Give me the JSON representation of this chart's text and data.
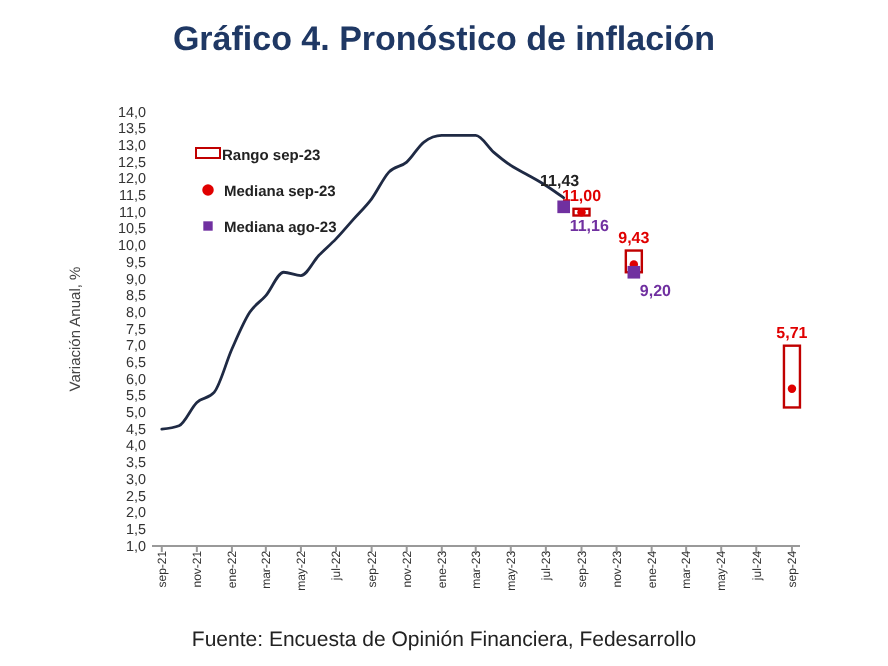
{
  "chart_data": {
    "type": "line",
    "title": "Gráfico 4. Pronóstico de inflación",
    "ylabel": "Variación Anual, %",
    "annotations": [
      "Fuente: Encuesta de Opinión Financiera, Fedesarrollo"
    ],
    "xlim": [
      "2021-08-15",
      "2024-09-15"
    ],
    "xticks": [
      {
        "value": "2021-09-01",
        "label": "sep-21"
      },
      {
        "value": "2021-11-01",
        "label": "nov-21"
      },
      {
        "value": "2022-01-01",
        "label": "ene-22"
      },
      {
        "value": "2022-03-01",
        "label": "mar-22"
      },
      {
        "value": "2022-05-01",
        "label": "may-22"
      },
      {
        "value": "2022-07-01",
        "label": "jul-22"
      },
      {
        "value": "2022-09-01",
        "label": "sep-22"
      },
      {
        "value": "2022-11-01",
        "label": "nov-22"
      },
      {
        "value": "2023-01-01",
        "label": "ene-23"
      },
      {
        "value": "2023-03-01",
        "label": "mar-23"
      },
      {
        "value": "2023-05-01",
        "label": "may-23"
      },
      {
        "value": "2023-07-01",
        "label": "jul-23"
      },
      {
        "value": "2023-09-01",
        "label": "sep-23"
      },
      {
        "value": "2023-11-01",
        "label": "nov-23"
      },
      {
        "value": "2024-01-01",
        "label": "ene-24"
      },
      {
        "value": "2024-03-01",
        "label": "mar-24"
      },
      {
        "value": "2024-05-01",
        "label": "may-24"
      },
      {
        "value": "2024-07-01",
        "label": "jul-24"
      },
      {
        "value": "2024-09-01",
        "label": "sep-24"
      }
    ],
    "ylim": [
      1,
      14
    ],
    "yticks": [
      {
        "value": 1,
        "label": "1,0"
      },
      {
        "value": 1.5,
        "label": "1,5"
      },
      {
        "value": 2,
        "label": "2,0"
      },
      {
        "value": 2.5,
        "label": "2,5"
      },
      {
        "value": 3,
        "label": "3,0"
      },
      {
        "value": 3.5,
        "label": "3,5"
      },
      {
        "value": 4,
        "label": "4,0"
      },
      {
        "value": 4.5,
        "label": "4,5"
      },
      {
        "value": 5,
        "label": "5,0"
      },
      {
        "value": 5.5,
        "label": "5,5"
      },
      {
        "value": 6,
        "label": "6,0"
      },
      {
        "value": 6.5,
        "label": "6,5"
      },
      {
        "value": 7,
        "label": "7,0"
      },
      {
        "value": 7.5,
        "label": "7,5"
      },
      {
        "value": 8,
        "label": "8,0"
      },
      {
        "value": 8.5,
        "label": "8,5"
      },
      {
        "value": 9,
        "label": "9,0"
      },
      {
        "value": 9.5,
        "label": "9,5"
      },
      {
        "value": 10,
        "label": "10,0"
      },
      {
        "value": 10.5,
        "label": "10,5"
      },
      {
        "value": 11,
        "label": "11,0"
      },
      {
        "value": 11.5,
        "label": "11,5"
      },
      {
        "value": 12,
        "label": "12,0"
      },
      {
        "value": 12.5,
        "label": "12,5"
      },
      {
        "value": 13,
        "label": "13,0"
      },
      {
        "value": 13.5,
        "label": "13,5"
      },
      {
        "value": 14,
        "label": "14,0"
      }
    ],
    "legend": "top left",
    "grid": false,
    "series": [
      {
        "color": "#1f2a44",
        "marker": "none",
        "x": [
          "2021-09-01",
          "2021-10-01",
          "2021-11-01",
          "2021-12-01",
          "2022-01-01",
          "2022-02-01",
          "2022-03-01",
          "2022-04-01",
          "2022-05-01",
          "2022-06-01",
          "2022-07-01",
          "2022-08-01",
          "2022-09-01",
          "2022-10-01",
          "2022-11-01",
          "2022-12-01",
          "2023-01-01",
          "2023-02-01",
          "2023-03-01",
          "2023-04-01",
          "2023-05-01",
          "2023-06-01",
          "2023-07-01",
          "2023-08-01"
        ],
        "values": [
          4.5,
          4.6,
          5.3,
          5.6,
          6.9,
          8.0,
          8.5,
          9.2,
          9.1,
          9.7,
          10.2,
          10.8,
          11.4,
          12.2,
          12.5,
          13.1,
          13.3,
          13.3,
          13.3,
          12.8,
          12.4,
          12.1,
          11.8,
          11.43
        ],
        "value_labels": [
          null,
          null,
          null,
          null,
          null,
          null,
          null,
          null,
          null,
          null,
          null,
          null,
          null,
          null,
          null,
          null,
          null,
          null,
          null,
          null,
          null,
          null,
          null,
          "11,43"
        ]
      },
      {
        "type": "bar",
        "name": "Rango sep-23",
        "color": "#c00000",
        "x": [
          "2023-09-01",
          "2023-12-01",
          "2024-09-01"
        ],
        "base": [
          10.9,
          9.2,
          5.15
        ],
        "values": [
          0.2,
          0.65,
          1.85
        ]
      },
      {
        "type": "scatter",
        "name": "Mediana sep-23",
        "color": "#e00000",
        "marker": "circle",
        "x": [
          "2023-09-01",
          "2023-12-01",
          "2024-09-01"
        ],
        "values": [
          11.0,
          9.43,
          5.71
        ],
        "value_labels": [
          "11,00",
          "9,43",
          "5,71"
        ]
      },
      {
        "type": "scatter",
        "name": "Mediana ago-23",
        "color": "#7030a0",
        "marker": "square",
        "x": [
          "2023-08-01",
          "2023-12-01"
        ],
        "values": [
          11.16,
          9.2
        ],
        "value_labels": [
          "11,16",
          "9,20"
        ]
      }
    ]
  }
}
